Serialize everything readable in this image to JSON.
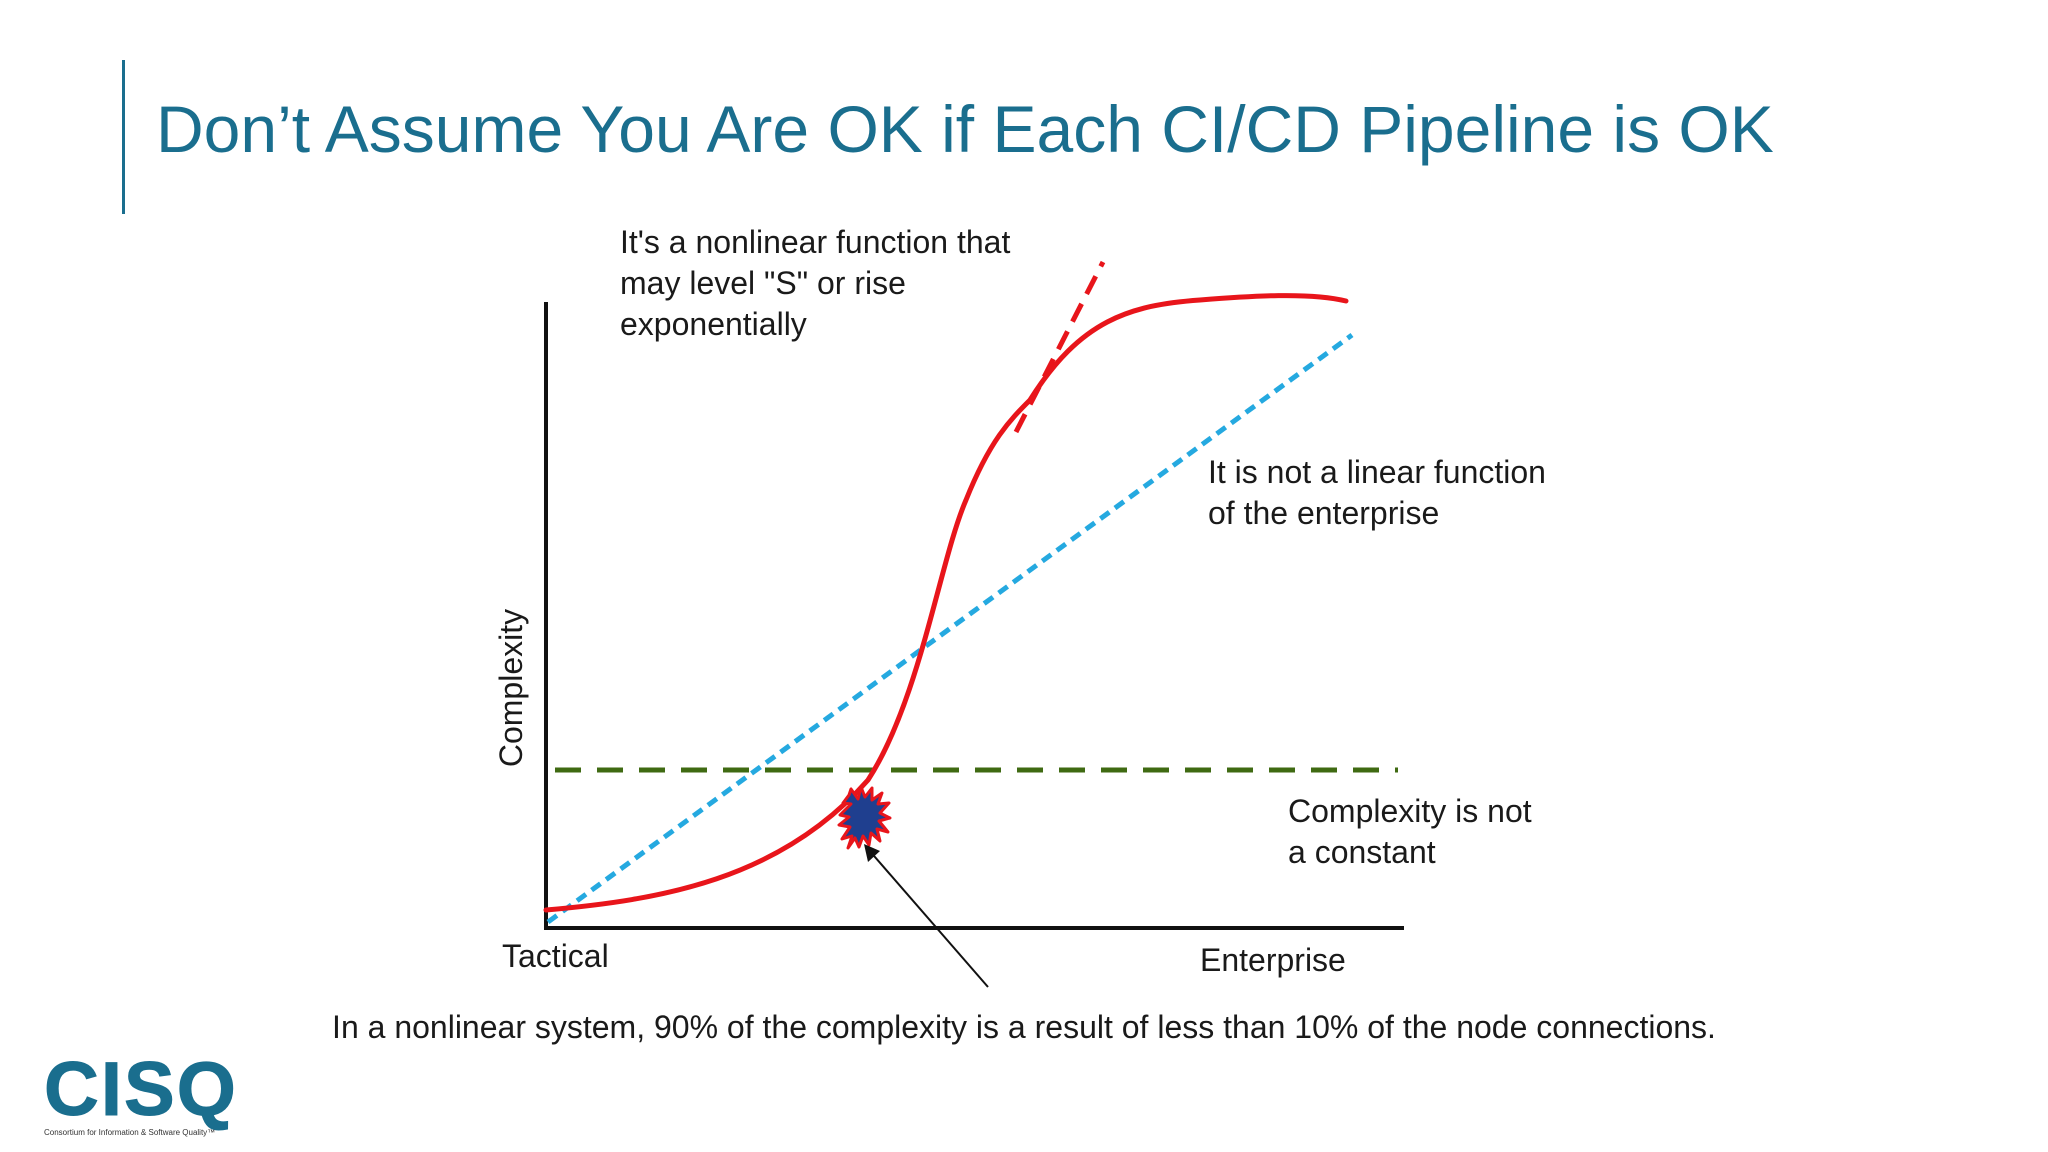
{
  "slide": {
    "title": "Don’t Assume You Are OK if Each CI/CD Pipeline is OK"
  },
  "diagram": {
    "annotations": {
      "nonlinear": "It's a nonlinear function that\nmay level \"S\" or rise\nexponentially",
      "linear": "It is not a linear function\nof the enterprise",
      "constant": "Complexity is not\na constant"
    },
    "axes": {
      "x_start": "Tactical",
      "x_end": "Enterprise",
      "y": "Complexity"
    },
    "caption": "In a nonlinear system, 90% of the complexity is a result of less than 10% of the node connections.",
    "colors": {
      "s_curve": "#e8151b",
      "linear": "#25a9e0",
      "constant": "#3f6a12",
      "axis": "#111111",
      "burst_fill": "#1f3f8f",
      "burst_outline": "#e8151b"
    }
  },
  "logo": {
    "name": "CISQ",
    "tagline": "Consortium for Information & Software Quality™"
  }
}
